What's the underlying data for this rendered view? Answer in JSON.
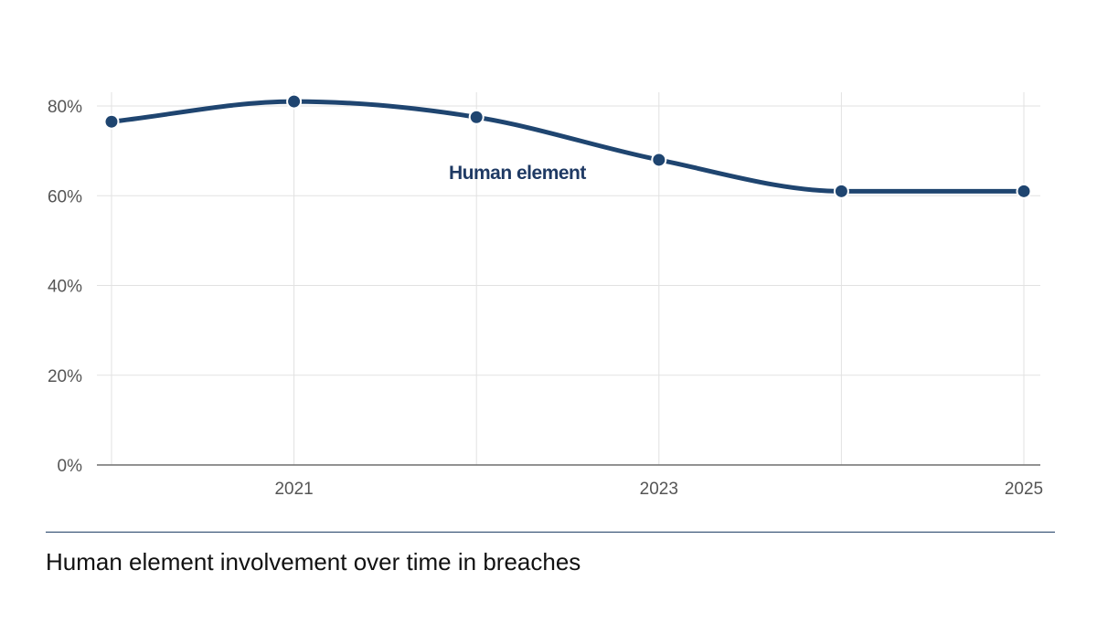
{
  "chart_data": {
    "type": "line",
    "x": [
      2020,
      2021,
      2022,
      2023,
      2024,
      2025
    ],
    "series": [
      {
        "name": "Human element",
        "values": [
          76.5,
          81,
          77.5,
          68,
          61,
          61
        ]
      }
    ],
    "xticks": [
      "2021",
      "2023",
      "2025"
    ],
    "yticks": [
      "0%",
      "20%",
      "40%",
      "60%",
      "80%"
    ],
    "ylim": [
      0,
      80
    ],
    "grid": true,
    "line_color": "#1f4570",
    "series_label_color": "#1f3a64",
    "title": "",
    "xlabel": "",
    "ylabel": ""
  },
  "caption": "Human element involvement over time in breaches"
}
